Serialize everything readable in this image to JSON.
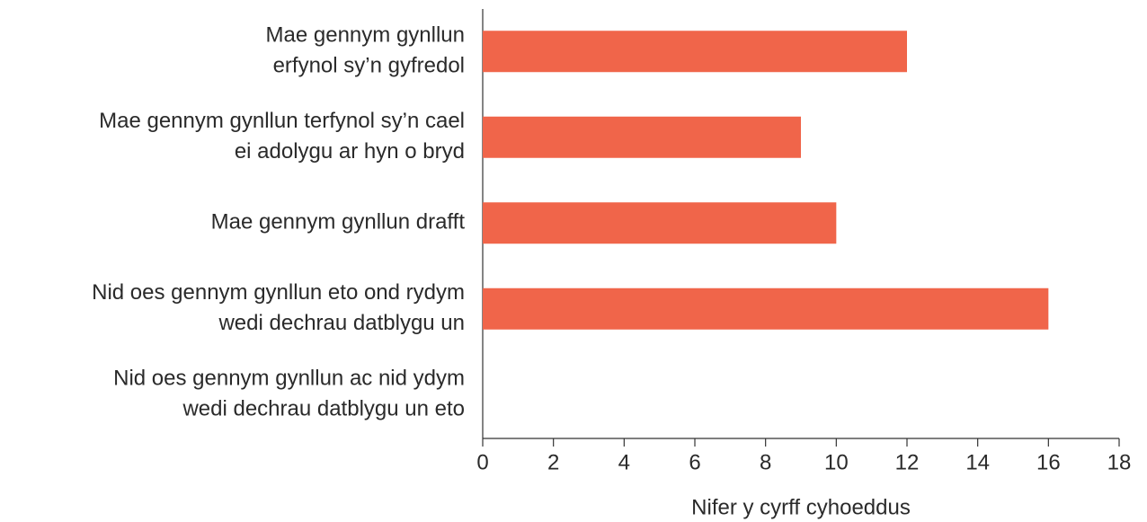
{
  "chart_data": {
    "type": "bar",
    "orientation": "horizontal",
    "categories": [
      [
        "Mae gennym gynllun",
        "erfynol sy’n gyfredol"
      ],
      [
        "Mae gennym gynllun terfynol sy’n cael",
        "ei adolygu ar hyn o bryd"
      ],
      [
        "Mae gennym gynllun drafft"
      ],
      [
        "Nid oes gennym gynllun eto ond rydym",
        "wedi dechrau datblygu un"
      ],
      [
        "Nid oes gennym gynllun ac nid ydym",
        "wedi dechrau datblygu un eto"
      ]
    ],
    "values": [
      12,
      9,
      10,
      16,
      0
    ],
    "color": "#f0654a",
    "xlabel": "Nifer y cyrff cyhoeddus",
    "xlim": [
      0,
      18
    ],
    "xticks": [
      0,
      2,
      4,
      6,
      8,
      10,
      12,
      14,
      16,
      18
    ]
  }
}
